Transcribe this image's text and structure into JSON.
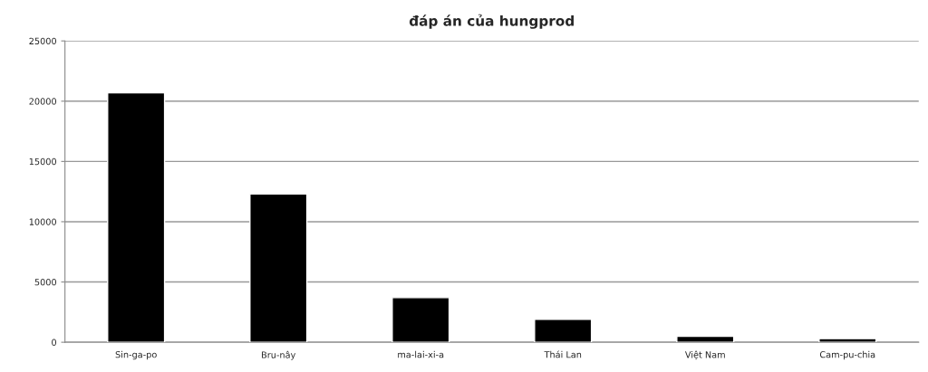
{
  "chart_data": {
    "type": "bar",
    "title": "đáp án của hungprod",
    "categories": [
      "Sin-ga-po",
      "Bru-nây",
      "ma-lai-xi-a",
      "Thái Lan",
      "Việt Nam",
      "Cam-pu-chia"
    ],
    "values": [
      20700,
      12300,
      3700,
      1900,
      500,
      300
    ],
    "color": "#000000",
    "ylim": [
      0,
      25000
    ],
    "yticks": [
      0,
      5000,
      10000,
      15000,
      20000,
      25000
    ],
    "grid": "y"
  }
}
